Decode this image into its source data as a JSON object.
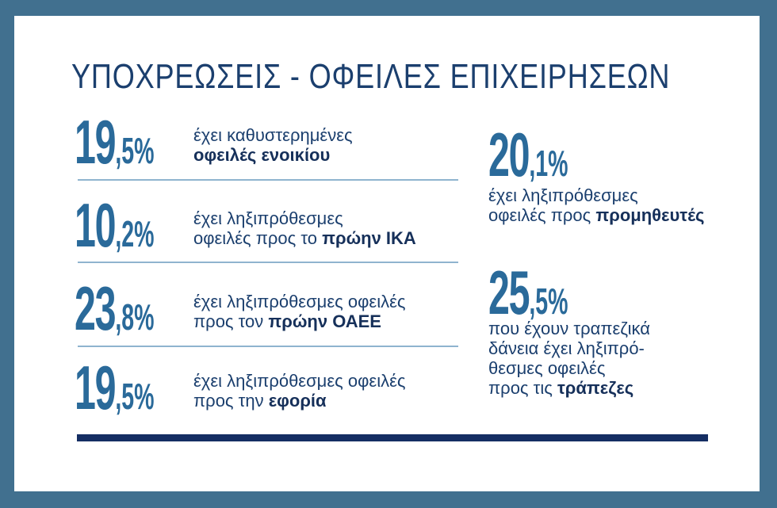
{
  "title": "ΥΠΟΧΡΕΩΣΕΙΣ - ΟΦΕΙΛΕΣ ΕΠΙΧΕΙΡΗΣΕΩΝ",
  "left_items": [
    {
      "whole": "19",
      "fraction": ",5%",
      "lines": [
        "έχει καθυστερημένες"
      ],
      "highlight": "οφειλές ενοικίου"
    },
    {
      "whole": "10",
      "fraction": ",2%",
      "lines": [
        "έχει ληξιπρόθεσμες",
        "οφειλές προς το"
      ],
      "highlight": "πρώην ΙΚΑ"
    },
    {
      "whole": "23",
      "fraction": ",8%",
      "lines": [
        "έχει ληξιπρόθεσμες οφειλές",
        "προς τον"
      ],
      "highlight": "πρώην ΟΑΕΕ"
    },
    {
      "whole": "19",
      "fraction": ",5%",
      "lines": [
        "έχει ληξιπρόθεσμες οφειλές",
        "προς την"
      ],
      "highlight": "εφορία"
    }
  ],
  "right_items": [
    {
      "whole": "20",
      "fraction": ",1%",
      "lines": [
        "έχει ληξιπρόθεσμες",
        "οφειλές προς"
      ],
      "highlight": "προμηθευτές"
    },
    {
      "whole": "25",
      "fraction": ",5%",
      "lines": [
        "που έχουν τραπεζικά",
        "δάνεια έχει ληξιπρό-",
        "θεσμες οφειλές",
        "προς τις"
      ],
      "highlight": "τράπεζες"
    }
  ]
}
